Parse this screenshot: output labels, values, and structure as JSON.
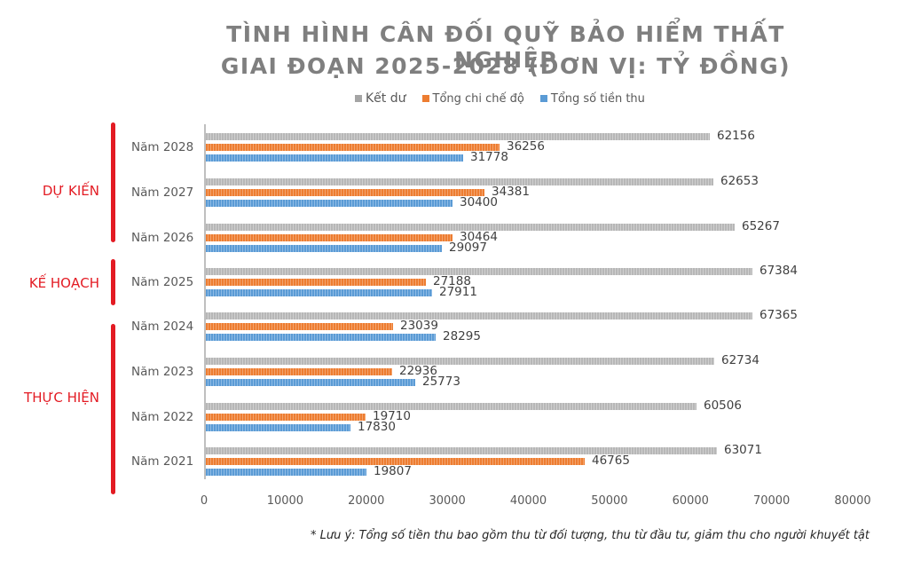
{
  "chart_data": {
    "type": "bar",
    "orientation": "horizontal",
    "title": "TÌNH HÌNH CÂN ĐỐI QUỸ BẢO HIỂM THẤT NGHIỆP GIAI ĐOẠN 2025-2028 (ĐƠN VỊ: TỶ ĐỒNG)",
    "title_lines": [
      "TÌNH HÌNH CÂN ĐỐI QUỸ BẢO HIỂM THẤT NGHIỆP",
      "GIAI ĐOẠN 2025-2028 (ĐƠN VỊ: TỶ ĐỒNG)"
    ],
    "categories": [
      "Năm 2028",
      "Năm 2027",
      "Năm 2026",
      "Năm 2025",
      "Năm 2024",
      "Năm 2023",
      "Năm 2022",
      "Năm 2021"
    ],
    "series": [
      {
        "name": "Kết dư",
        "color": "#a5a5a5",
        "values": [
          62156,
          62653,
          65267,
          67384,
          67365,
          62734,
          60506,
          63071
        ]
      },
      {
        "name": "Tổng chi chế độ",
        "color": "#ed7d31",
        "values": [
          36256,
          34381,
          30464,
          27188,
          23039,
          22936,
          19710,
          46765
        ]
      },
      {
        "name": "Tổng số tiền thu",
        "color": "#5b9bd5",
        "values": [
          31778,
          30400,
          29097,
          27911,
          28295,
          25773,
          17830,
          19807
        ]
      }
    ],
    "groups": [
      {
        "label": "DỰ KIẾN",
        "categories": [
          "Năm 2028",
          "Năm 2027",
          "Năm 2026"
        ]
      },
      {
        "label": "KẾ HOẠCH",
        "categories": [
          "Năm 2025"
        ]
      },
      {
        "label": "THỰC HIỆN",
        "categories": [
          "Năm 2024",
          "Năm 2023",
          "Năm 2022",
          "Năm 2021"
        ]
      }
    ],
    "xlabel": "",
    "ylabel": "",
    "xlim": [
      0,
      80000
    ],
    "x_ticks": [
      "0",
      "10000",
      "20000",
      "30000",
      "40000",
      "50000",
      "60000",
      "70000",
      "80000"
    ],
    "grid": false,
    "legend_position": "top",
    "note": "* Lưu ý: Tổng số tiền thu bao gồm thu từ đối tượng, thu từ đầu tư, giảm thu cho người khuyết tật"
  }
}
